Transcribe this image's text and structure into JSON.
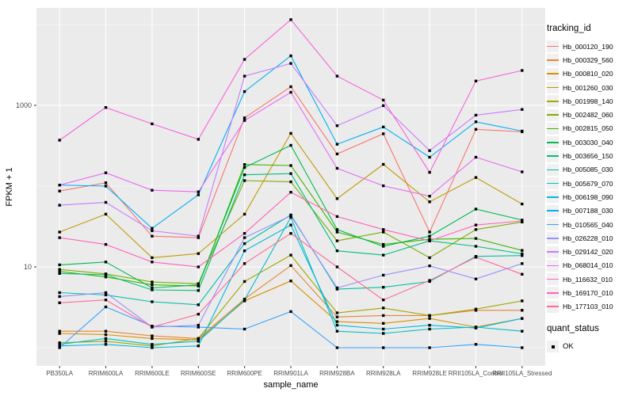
{
  "figure": {
    "background": "#FFFFFF",
    "panel_background": "#EBEBEB",
    "grid_color": "#FFFFFF",
    "tick_color": "#333333",
    "tick_label_color": "#4D4D4D",
    "point_color": "#000000",
    "legend_key_background": "#F0F0F0"
  },
  "chart_data": {
    "type": "line",
    "title": "",
    "xlabel": "sample_name",
    "ylabel": "FPKM + 1",
    "y_scale": "log10",
    "ylim": [
      1,
      20000
    ],
    "grid": "on",
    "legend_position": "right",
    "y_ticks": [
      {
        "value": 1000,
        "label": "1000"
      },
      {
        "value": 10,
        "label": "10"
      }
    ],
    "y_minor_values": [
      1,
      100,
      10000
    ],
    "categories": [
      "PB350LA",
      "RRIM600LA",
      "RRIM600LE",
      "RRIM600SE",
      "RRIM600PE",
      "RRIM901LA",
      "RRIM928BA",
      "RRIM928LA",
      "RRIM928LE",
      "RRII105LA_Control",
      "RRII105LA_Stressed"
    ],
    "legend": {
      "title": "tracking_id"
    },
    "quant_status": {
      "title": "quant_status",
      "items": [
        {
          "label": "OK",
          "marker": "square"
        }
      ]
    },
    "series": [
      {
        "name": "Hb_000120_190",
        "color": "#F8766D",
        "values": [
          87,
          110,
          24,
          23,
          700,
          1700,
          250,
          445,
          27,
          505,
          470
        ]
      },
      {
        "name": "Hb_000329_560",
        "color": "#EA8331",
        "values": [
          1.6,
          1.6,
          1.4,
          1.3,
          4.0,
          10.4,
          2.4,
          2.5,
          2.5,
          2.9,
          2.9
        ]
      },
      {
        "name": "Hb_000810_020",
        "color": "#D89000",
        "values": [
          1.5,
          1.45,
          1.3,
          1.25,
          3.8,
          6.7,
          2.1,
          2.0,
          2.3,
          1.8,
          2.3
        ]
      },
      {
        "name": "Hb_001260_030",
        "color": "#C09B00",
        "values": [
          27,
          45,
          13,
          14.6,
          45,
          450,
          70,
          186,
          64,
          128,
          60
        ]
      },
      {
        "name": "Hb_001998_140",
        "color": "#A3A500",
        "values": [
          1.15,
          1.2,
          1.05,
          1.3,
          6.6,
          14,
          2.7,
          3.1,
          2.5,
          3.0,
          3.8
        ]
      },
      {
        "name": "Hb_002482_060",
        "color": "#7CAE00",
        "values": [
          9.3,
          8.2,
          6.5,
          6.2,
          117,
          113,
          21,
          27,
          13,
          29,
          36
        ]
      },
      {
        "name": "Hb_002815_050",
        "color": "#39B600",
        "values": [
          8.8,
          7.5,
          6.0,
          5.8,
          185,
          180,
          27,
          19,
          22,
          22.5,
          16
        ]
      },
      {
        "name": "Hb_003030_040",
        "color": "#00BB4E",
        "values": [
          10.6,
          11.5,
          5.5,
          6.0,
          170,
          320,
          29,
          18,
          24,
          52,
          38
        ]
      },
      {
        "name": "Hb_003656_150",
        "color": "#00BF7D",
        "values": [
          8.3,
          8.0,
          5.2,
          5.1,
          138,
          143,
          15.8,
          14,
          21,
          18,
          14.5
        ]
      },
      {
        "name": "Hb_005085_030",
        "color": "#00C1A3",
        "values": [
          4.8,
          4.5,
          3.7,
          3.4,
          19.4,
          44,
          5.3,
          5.6,
          6.6,
          13.5,
          13.8
        ]
      },
      {
        "name": "Hb_005679_070",
        "color": "#00BFC4",
        "values": [
          1.1,
          1.3,
          1.1,
          1.2,
          3.9,
          41,
          1.6,
          1.5,
          1.7,
          1.8,
          1.6
        ]
      },
      {
        "name": "Hb_006198_090",
        "color": "#00BAE0",
        "values": [
          1.05,
          1.1,
          1.0,
          1.05,
          15.8,
          33,
          1.9,
          1.7,
          1.9,
          1.75,
          2.3
        ]
      },
      {
        "name": "Hb_007188_030",
        "color": "#00B0F6",
        "values": [
          103,
          100,
          30,
          78,
          1480,
          4100,
          330,
          540,
          228,
          625,
          480
        ]
      },
      {
        "name": "Hb_010565_040",
        "color": "#35A2FF",
        "values": [
          1.0,
          3.2,
          1.85,
          1.8,
          1.7,
          2.8,
          1.0,
          1.0,
          1.0,
          1.1,
          1.0
        ]
      },
      {
        "name": "Hb_026228_010",
        "color": "#9590FF",
        "values": [
          4.3,
          4.8,
          1.8,
          1.9,
          23,
          43,
          5.5,
          7.9,
          10.3,
          7.1,
          11
        ]
      },
      {
        "name": "Hb_029142_020",
        "color": "#C77CFF",
        "values": [
          58,
          63,
          28,
          24,
          2300,
          3300,
          560,
          990,
          275,
          755,
          890
        ]
      },
      {
        "name": "Hb_068014_010",
        "color": "#E76BF3",
        "values": [
          103,
          146,
          89,
          85,
          650,
          1450,
          166,
          101,
          75,
          228,
          150
        ]
      },
      {
        "name": "Hb_116632_010",
        "color": "#FA62DB",
        "values": [
          370,
          940,
          590,
          380,
          3700,
          11500,
          2300,
          1160,
          148,
          2000,
          2700
        ]
      },
      {
        "name": "Hb_169170_010",
        "color": "#FF62BC",
        "values": [
          23,
          19,
          11.5,
          10,
          26,
          84,
          42,
          29,
          21,
          33,
          37
        ]
      },
      {
        "name": "Hb_177103_010",
        "color": "#FF6A98",
        "values": [
          3.6,
          3.9,
          1.8,
          2.6,
          11,
          26,
          10,
          3.9,
          6.8,
          13.2,
          8.1
        ]
      }
    ]
  }
}
